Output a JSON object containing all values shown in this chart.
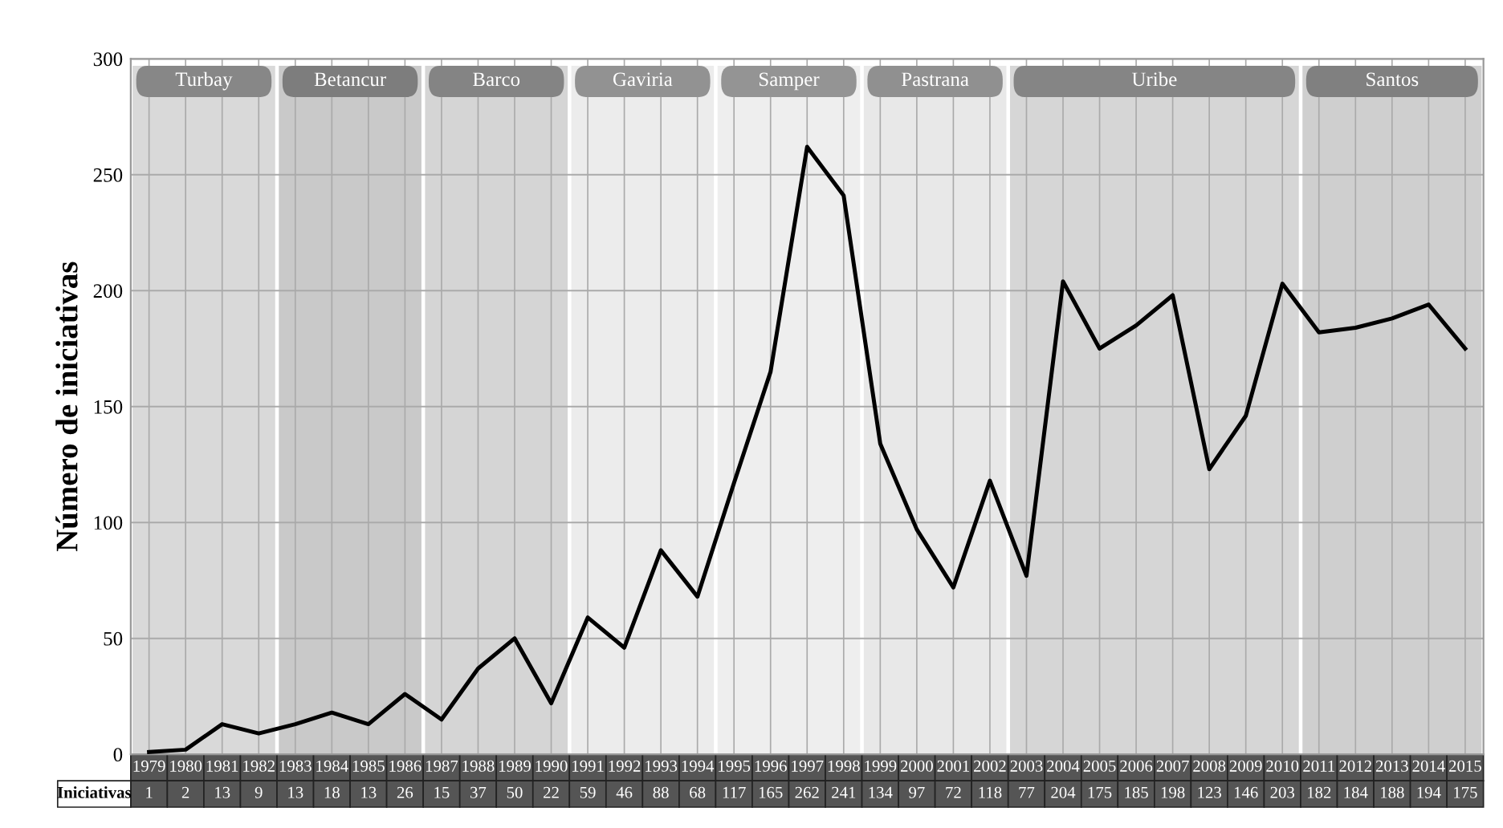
{
  "chart_data": {
    "type": "line",
    "ylabel": "Número de iniciativas",
    "categories": [
      "1979",
      "1980",
      "1981",
      "1982",
      "1983",
      "1984",
      "1985",
      "1986",
      "1987",
      "1988",
      "1989",
      "1990",
      "1991",
      "1992",
      "1993",
      "1994",
      "1995",
      "1996",
      "1997",
      "1998",
      "1999",
      "2000",
      "2001",
      "2002",
      "2003",
      "2004",
      "2005",
      "2006",
      "2007",
      "2008",
      "2009",
      "2010",
      "2011",
      "2012",
      "2013",
      "2014",
      "2015"
    ],
    "annotations": [
      "Iniciativas"
    ],
    "series": [
      {
        "color": "#000000",
        "values": [
          1,
          2,
          13,
          9,
          13,
          18,
          13,
          26,
          15,
          37,
          50,
          22,
          59,
          46,
          88,
          68,
          117,
          165,
          262,
          241,
          134,
          97,
          72,
          118,
          77,
          204,
          175,
          185,
          198,
          123,
          146,
          203,
          182,
          184,
          188,
          194,
          175
        ]
      }
    ],
    "ylim": [
      0,
      300
    ],
    "yticks": [
      0,
      50,
      100,
      150,
      200,
      250,
      300
    ],
    "grid": true,
    "legend": false,
    "marker": "none",
    "line_style": "solid",
    "data_labels": true,
    "bands": [
      {
        "axis": "x",
        "from": "1979",
        "to": "1982",
        "label": "Turbay",
        "color": "#d9d9d9"
      },
      {
        "axis": "x",
        "from": "1983",
        "to": "1986",
        "label": "Betancur",
        "color": "#c9c9c9"
      },
      {
        "axis": "x",
        "from": "1987",
        "to": "1990",
        "label": "Barco",
        "color": "#d5d5d5"
      },
      {
        "axis": "x",
        "from": "1991",
        "to": "1994",
        "label": "Gaviria",
        "color": "#ececec"
      },
      {
        "axis": "x",
        "from": "1995",
        "to": "1998",
        "label": "Samper",
        "color": "#eeeeee"
      },
      {
        "axis": "x",
        "from": "1999",
        "to": "2002",
        "label": "Pastrana",
        "color": "#e8e8e8"
      },
      {
        "axis": "x",
        "from": "2003",
        "to": "2010",
        "label": "Uribe",
        "color": "#d6d6d6"
      },
      {
        "axis": "x",
        "from": "2011",
        "to": "2015",
        "label": "Santos",
        "color": "#cfcfcf"
      }
    ]
  }
}
